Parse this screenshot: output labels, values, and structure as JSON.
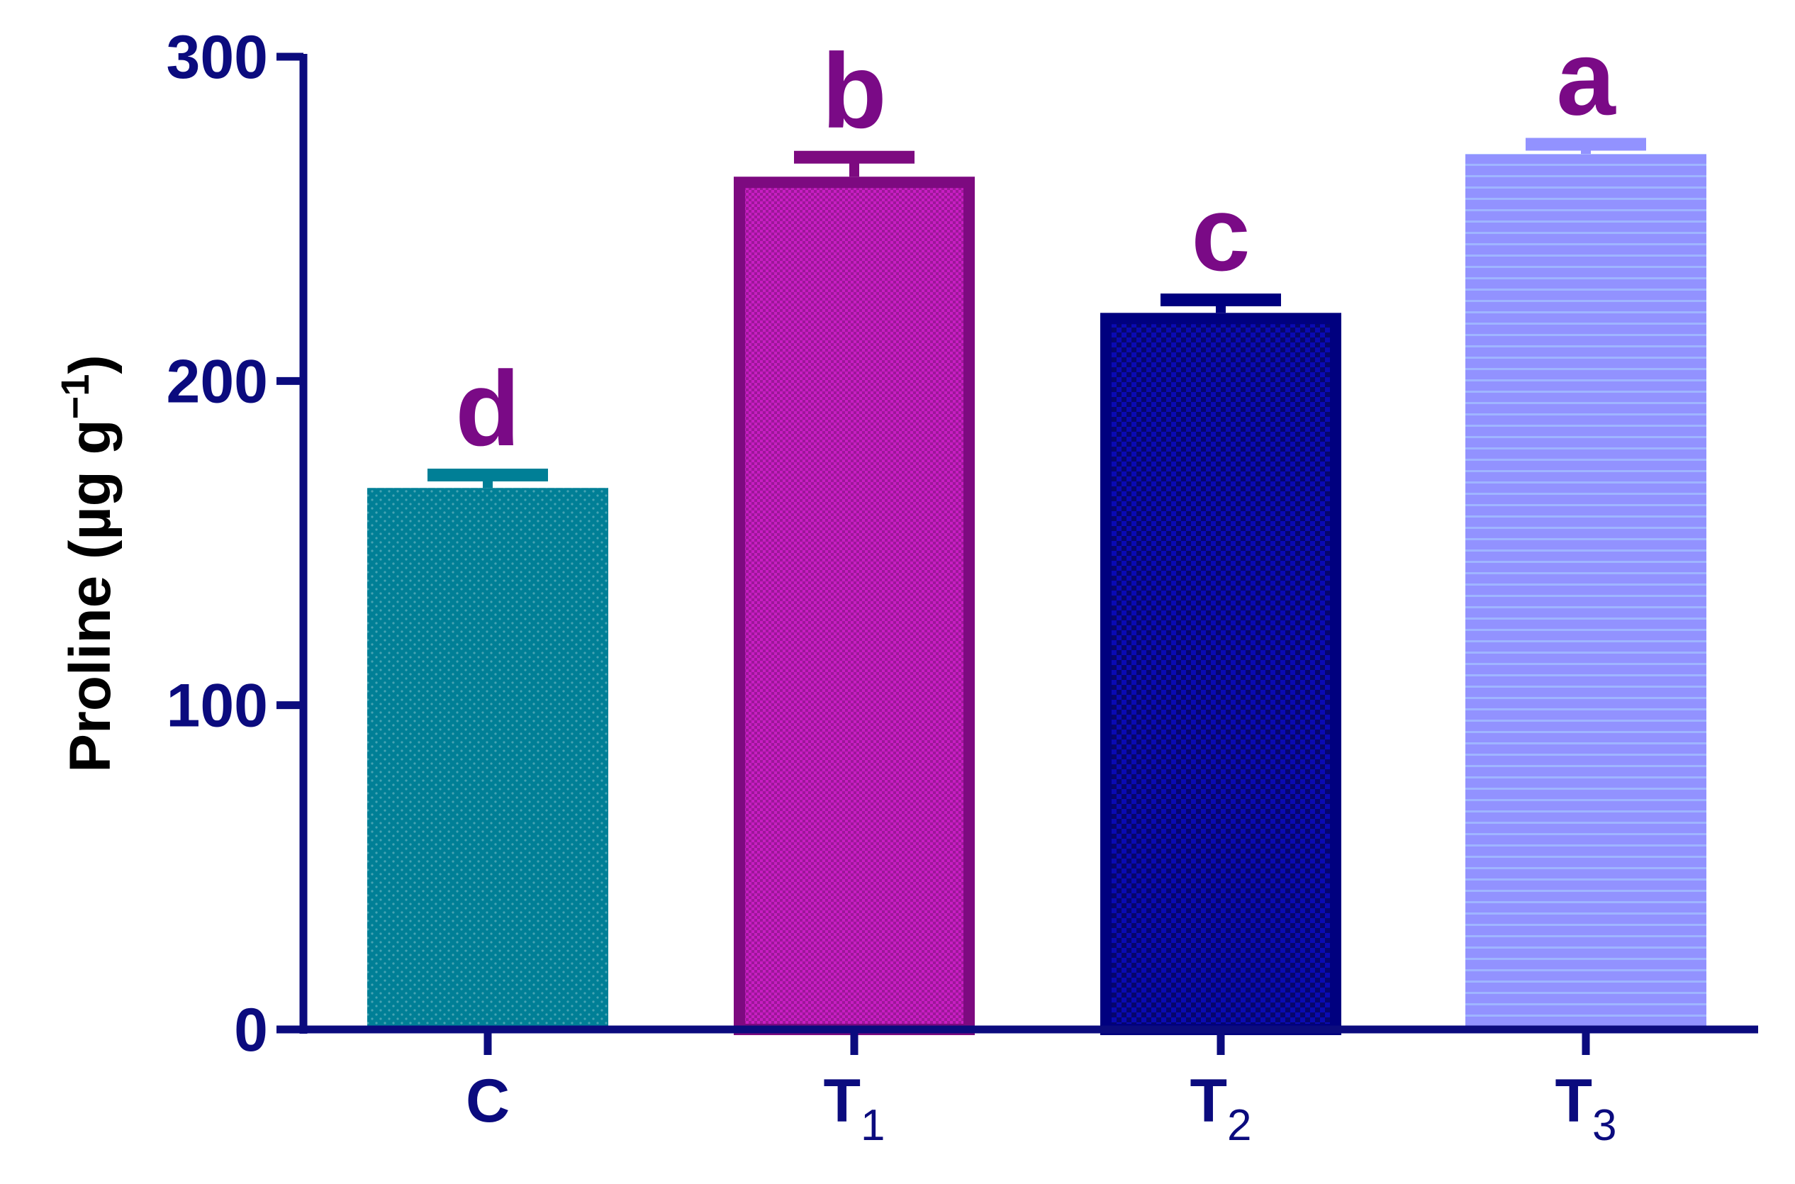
{
  "colors": {
    "axis": "#0b0b7e",
    "letter": "#7a0a86"
  },
  "chart_data": {
    "type": "bar",
    "ylabel": "Proline (µg g",
    "ylabel_sup": "−1",
    "ylabel_close": ")",
    "ylim": [
      0,
      300
    ],
    "yticks": [
      0,
      100,
      200,
      300
    ],
    "grid": false,
    "legend": "none",
    "categories": [
      {
        "base": "C",
        "sub": ""
      },
      {
        "base": "T",
        "sub": "1"
      },
      {
        "base": "T",
        "sub": "2"
      },
      {
        "base": "T",
        "sub": "3"
      }
    ],
    "values": [
      167,
      263,
      221,
      270
    ],
    "errors": [
      4,
      6,
      4,
      3
    ],
    "letters": [
      "d",
      "b",
      "c",
      "a"
    ],
    "bar_fills": [
      "#007f96",
      "#c81ec3",
      "#0a0ab4",
      "#9292ff"
    ],
    "bar_edges": [
      "#007f96",
      "#7d0a80",
      "#00007f",
      "#9292ff"
    ],
    "bar_patterns": [
      "dots",
      "fine-check",
      "check",
      "hlines"
    ]
  }
}
